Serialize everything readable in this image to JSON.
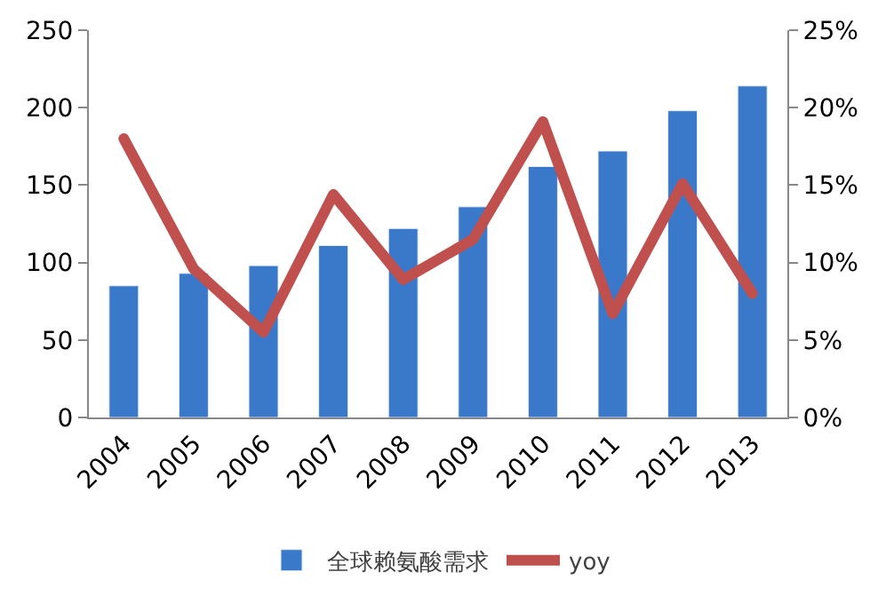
{
  "chart_data": {
    "type": "bar",
    "categories": [
      "2004",
      "2005",
      "2006",
      "2007",
      "2008",
      "2009",
      "2010",
      "2011",
      "2012",
      "2013"
    ],
    "series": [
      {
        "name": "全球赖氨酸需求",
        "color": "#3a78c9",
        "values": [
          85,
          93,
          98,
          111,
          122,
          136,
          162,
          172,
          198,
          214
        ]
      },
      {
        "name": "yoy",
        "type": "line",
        "axis": "y2",
        "color": "#c0504d",
        "values": [
          18.0,
          9.6,
          5.5,
          14.4,
          8.9,
          11.5,
          19.1,
          6.7,
          15.1,
          8.0
        ]
      }
    ],
    "ylim": [
      0,
      250
    ],
    "yticks": [
      0,
      50,
      100,
      150,
      200,
      250
    ],
    "y2lim": [
      0,
      25
    ],
    "y2ticks": [
      {
        "value": 0,
        "label": "0%"
      },
      {
        "value": 5,
        "label": "5%"
      },
      {
        "value": 10,
        "label": "10%"
      },
      {
        "value": 15,
        "label": "15%"
      },
      {
        "value": 20,
        "label": "20%"
      },
      {
        "value": 25,
        "label": "25%"
      }
    ],
    "grid": false,
    "legend": "bottom",
    "marker": "none",
    "line_style": "solid"
  }
}
